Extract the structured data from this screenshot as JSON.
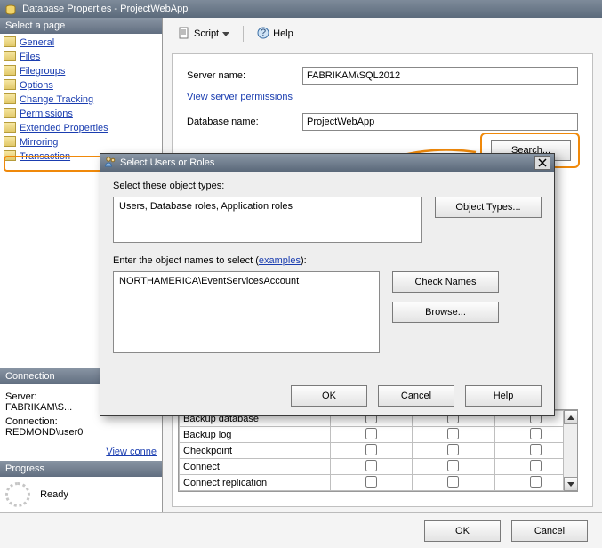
{
  "window": {
    "title": "Database Properties - ProjectWebApp"
  },
  "left": {
    "select_page": "Select a page",
    "pages": [
      "General",
      "Files",
      "Filegroups",
      "Options",
      "Change Tracking",
      "Permissions",
      "Extended Properties",
      "Mirroring",
      "Transaction"
    ],
    "connection_head": "Connection",
    "server_lbl": "Server:",
    "server_val": "FABRIKAM\\S...",
    "connection_lbl": "Connection:",
    "connection_val": "REDMOND\\user0",
    "view_conn": "View conne",
    "progress_head": "Progress",
    "progress_status": "Ready"
  },
  "toolbar": {
    "script": "Script",
    "help": "Help"
  },
  "form": {
    "server_name_lbl": "Server name:",
    "server_name_val": "FABRIKAM\\SQL2012",
    "view_perm": "View server permissions",
    "db_name_lbl": "Database name:",
    "db_name_val": "ProjectWebApp",
    "search_btn": "Search..."
  },
  "perm_rows": [
    "Backup database",
    "Backup log",
    "Checkpoint",
    "Connect",
    "Connect replication"
  ],
  "modal": {
    "title": "Select Users or Roles",
    "select_types_lbl": "Select these object types:",
    "types_val": "Users, Database roles, Application roles",
    "object_types_btn": "Object Types...",
    "enter_names_lbl_a": "Enter the object names to select (",
    "examples": "examples",
    "enter_names_lbl_b": "):",
    "names_val": "NORTHAMERICA\\EventServicesAccount",
    "check_names_btn": "Check Names",
    "browse_btn": "Browse...",
    "ok": "OK",
    "cancel": "Cancel",
    "help": "Help"
  },
  "bottom": {
    "ok": "OK",
    "cancel": "Cancel"
  },
  "colors": {
    "highlight": "#f0890a"
  }
}
